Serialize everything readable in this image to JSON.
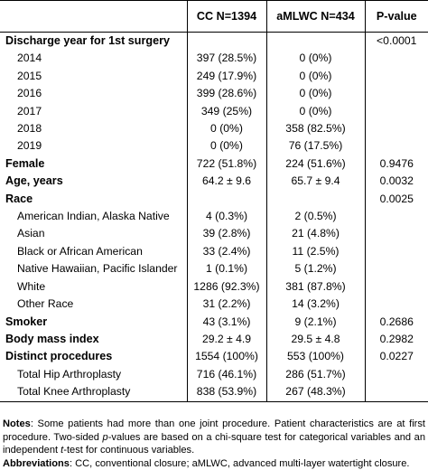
{
  "table": {
    "headers": [
      "",
      "CC N=1394",
      "aMLWC N=434",
      "P-value"
    ],
    "rows": [
      {
        "label": "Discharge year for 1st surgery",
        "level": 0,
        "cc": "",
        "amlwc": "",
        "p": "<0.0001"
      },
      {
        "label": "2014",
        "level": 1,
        "cc": "397 (28.5%)",
        "amlwc": "0 (0%)",
        "p": ""
      },
      {
        "label": "2015",
        "level": 1,
        "cc": "249 (17.9%)",
        "amlwc": "0 (0%)",
        "p": ""
      },
      {
        "label": "2016",
        "level": 1,
        "cc": "399 (28.6%)",
        "amlwc": "0 (0%)",
        "p": ""
      },
      {
        "label": "2017",
        "level": 1,
        "cc": "349 (25%)",
        "amlwc": "0 (0%)",
        "p": ""
      },
      {
        "label": "2018",
        "level": 1,
        "cc": "0 (0%)",
        "amlwc": "358 (82.5%)",
        "p": ""
      },
      {
        "label": "2019",
        "level": 1,
        "cc": "0 (0%)",
        "amlwc": "76 (17.5%)",
        "p": ""
      },
      {
        "label": "Female",
        "level": 0,
        "cc": "722 (51.8%)",
        "amlwc": "224 (51.6%)",
        "p": "0.9476"
      },
      {
        "label": "Age, years",
        "level": 0,
        "cc": "64.2 ± 9.6",
        "amlwc": "65.7 ± 9.4",
        "p": "0.0032"
      },
      {
        "label": "Race",
        "level": 0,
        "cc": "",
        "amlwc": "",
        "p": "0.0025"
      },
      {
        "label": "American Indian, Alaska Native",
        "level": 1,
        "cc": "4 (0.3%)",
        "amlwc": "2 (0.5%)",
        "p": ""
      },
      {
        "label": "Asian",
        "level": 1,
        "cc": "39 (2.8%)",
        "amlwc": "21 (4.8%)",
        "p": ""
      },
      {
        "label": "Black or African American",
        "level": 1,
        "cc": "33 (2.4%)",
        "amlwc": "11 (2.5%)",
        "p": ""
      },
      {
        "label": "Native Hawaiian, Pacific Islander",
        "level": 1,
        "cc": "1 (0.1%)",
        "amlwc": "5 (1.2%)",
        "p": ""
      },
      {
        "label": "White",
        "level": 1,
        "cc": "1286 (92.3%)",
        "amlwc": "381 (87.8%)",
        "p": ""
      },
      {
        "label": "Other Race",
        "level": 1,
        "cc": "31 (2.2%)",
        "amlwc": "14 (3.2%)",
        "p": ""
      },
      {
        "label": "Smoker",
        "level": 0,
        "cc": "43 (3.1%)",
        "amlwc": "9 (2.1%)",
        "p": "0.2686"
      },
      {
        "label": "Body mass index",
        "level": 0,
        "cc": "29.2 ± 4.9",
        "amlwc": "29.5 ± 4.8",
        "p": "0.2982"
      },
      {
        "label": "Distinct procedures",
        "level": 0,
        "cc": "1554 (100%)",
        "amlwc": "553 (100%)",
        "p": "0.0227"
      },
      {
        "label": "Total Hip Arthroplasty",
        "level": 1,
        "cc": "716 (46.1%)",
        "amlwc": "286 (51.7%)",
        "p": ""
      },
      {
        "label": "Total Knee Arthroplasty",
        "level": 1,
        "cc": "838 (53.9%)",
        "amlwc": "267 (48.3%)",
        "p": ""
      }
    ]
  },
  "notes": {
    "notes_label": "Notes",
    "notes_text_1": ": Some patients had more than one joint procedure. Patient characteristics are at first procedure. Two-sided ",
    "notes_p": "p",
    "notes_text_2": "-values are based on a chi-square test for categorical variables and an independent ",
    "notes_t": "t",
    "notes_text_3": "-test for continuous variables.",
    "abbrev_label": "Abbreviations",
    "abbrev_text": ": CC, conventional closure; aMLWC, advanced multi-layer watertight closure."
  }
}
